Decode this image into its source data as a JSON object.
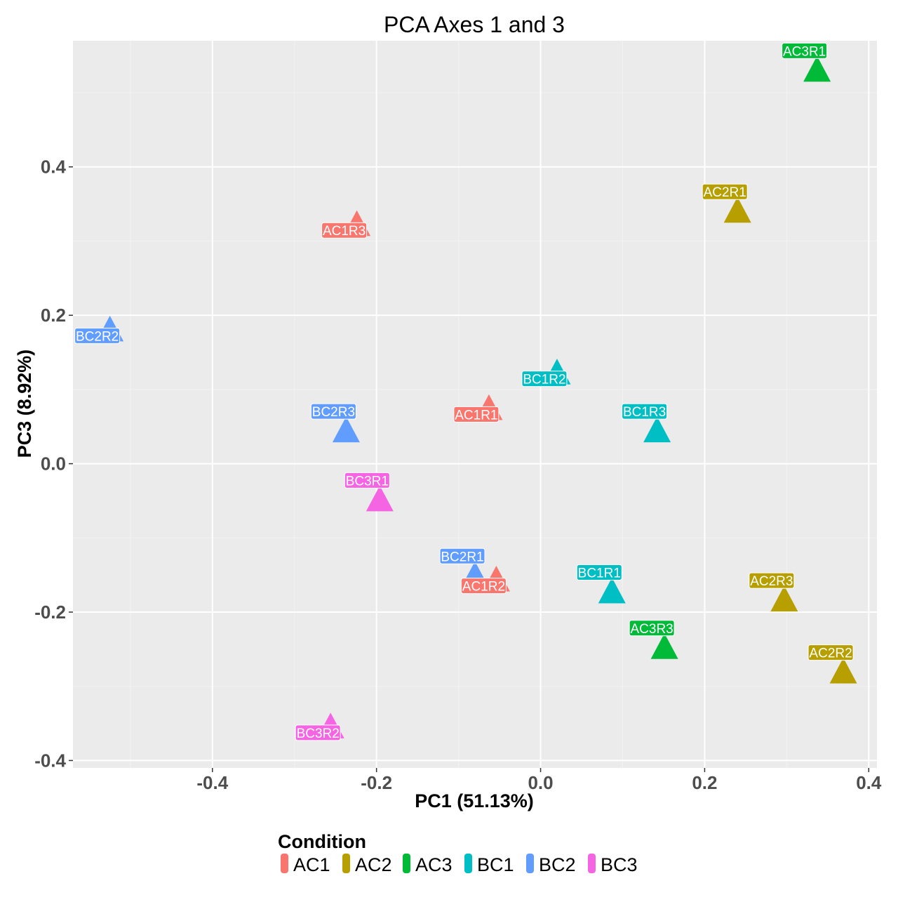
{
  "chart_data": {
    "type": "scatter",
    "title": "PCA Axes 1 and 3",
    "xlabel": "PC1 (51.13%)",
    "ylabel": "PC3 (8.92%)",
    "xlim": [
      -0.57,
      0.41
    ],
    "ylim": [
      -0.41,
      0.57
    ],
    "x_ticks": [
      -0.4,
      -0.2,
      0.0,
      0.2,
      0.4
    ],
    "x_tick_labels": [
      "-0.4",
      "-0.2",
      "0.0",
      "0.2",
      "0.4"
    ],
    "y_ticks": [
      -0.4,
      -0.2,
      0.0,
      0.2,
      0.4
    ],
    "y_tick_labels": [
      "-0.4",
      "-0.2",
      "0.0",
      "0.2",
      "0.4"
    ],
    "grid": true,
    "legend_position": "bottom",
    "legend_title": "Condition",
    "series": [
      {
        "name": "AC1",
        "color": "#F8766D",
        "points": [
          {
            "label": "AC1R1",
            "x": -0.063,
            "y": 0.073,
            "label_pos": "below"
          },
          {
            "label": "AC1R2",
            "x": -0.054,
            "y": -0.158,
            "label_pos": "below"
          },
          {
            "label": "AC1R3",
            "x": -0.224,
            "y": 0.321,
            "label_pos": "below"
          }
        ]
      },
      {
        "name": "AC2",
        "color": "#B79F00",
        "points": [
          {
            "label": "AC2R1",
            "x": 0.24,
            "y": 0.339,
            "label_pos": "above"
          },
          {
            "label": "AC2R2",
            "x": 0.369,
            "y": -0.282,
            "label_pos": "above"
          },
          {
            "label": "AC2R3",
            "x": 0.297,
            "y": -0.185,
            "label_pos": "above"
          }
        ]
      },
      {
        "name": "AC3",
        "color": "#00BA38",
        "points": [
          {
            "label": "AC3R1",
            "x": 0.337,
            "y": 0.529,
            "label_pos": "above"
          },
          {
            "label": "AC3R3",
            "x": 0.151,
            "y": -0.249,
            "label_pos": "above"
          }
        ]
      },
      {
        "name": "BC1",
        "color": "#00BFC4",
        "points": [
          {
            "label": "BC1R1",
            "x": 0.087,
            "y": -0.174,
            "label_pos": "above"
          },
          {
            "label": "BC1R2",
            "x": 0.02,
            "y": 0.121,
            "label_pos": "below"
          },
          {
            "label": "BC1R3",
            "x": 0.142,
            "y": 0.043,
            "label_pos": "above"
          }
        ]
      },
      {
        "name": "BC2",
        "color": "#619CFF",
        "points": [
          {
            "label": "BC2R1",
            "x": -0.08,
            "y": -0.152,
            "label_pos": "above"
          },
          {
            "label": "BC2R2",
            "x": -0.525,
            "y": 0.179,
            "label_pos": "below"
          },
          {
            "label": "BC2R3",
            "x": -0.237,
            "y": 0.043,
            "label_pos": "above"
          }
        ]
      },
      {
        "name": "BC3",
        "color": "#F564E3",
        "points": [
          {
            "label": "BC3R1",
            "x": -0.196,
            "y": -0.05,
            "label_pos": "above"
          },
          {
            "label": "BC3R2",
            "x": -0.256,
            "y": -0.356,
            "label_pos": "below"
          }
        ]
      }
    ]
  }
}
